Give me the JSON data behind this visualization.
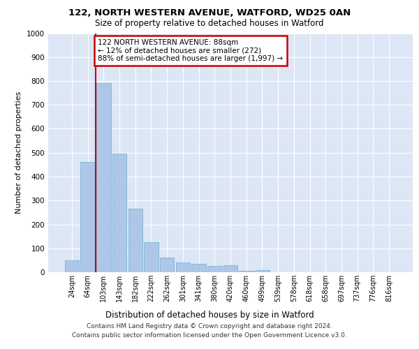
{
  "title1": "122, NORTH WESTERN AVENUE, WATFORD, WD25 0AN",
  "title2": "Size of property relative to detached houses in Watford",
  "xlabel": "Distribution of detached houses by size in Watford",
  "ylabel": "Number of detached properties",
  "footnote1": "Contains HM Land Registry data © Crown copyright and database right 2024.",
  "footnote2": "Contains public sector information licensed under the Open Government Licence v3.0.",
  "annotation_line1": "122 NORTH WESTERN AVENUE: 88sqm",
  "annotation_line2": "← 12% of detached houses are smaller (272)",
  "annotation_line3": "88% of semi-detached houses are larger (1,997) →",
  "bar_color": "#aec6e8",
  "bar_edge_color": "#6baed6",
  "vline_color": "#cc0000",
  "annotation_box_edge_color": "#cc0000",
  "background_color": "#dce6f5",
  "categories": [
    "24sqm",
    "64sqm",
    "103sqm",
    "143sqm",
    "182sqm",
    "222sqm",
    "262sqm",
    "301sqm",
    "341sqm",
    "380sqm",
    "420sqm",
    "460sqm",
    "499sqm",
    "539sqm",
    "578sqm",
    "618sqm",
    "658sqm",
    "697sqm",
    "737sqm",
    "776sqm",
    "816sqm"
  ],
  "values": [
    50,
    460,
    790,
    495,
    265,
    125,
    60,
    40,
    35,
    25,
    30,
    5,
    10,
    0,
    0,
    0,
    0,
    0,
    0,
    0,
    0
  ],
  "vline_x_index": 1.5,
  "ylim": [
    0,
    1000
  ],
  "yticks": [
    0,
    100,
    200,
    300,
    400,
    500,
    600,
    700,
    800,
    900,
    1000
  ]
}
